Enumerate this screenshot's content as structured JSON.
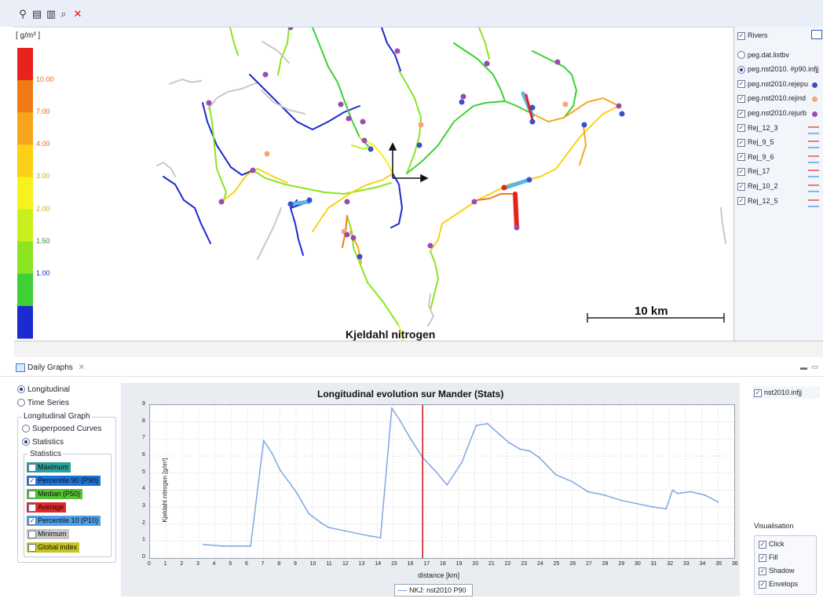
{
  "toolbar": {
    "icons": [
      "binoculars-icon",
      "save-icon",
      "export-icon",
      "zoom-icon",
      "close-icon"
    ]
  },
  "map": {
    "legend_unit": "[ g/m³ ]",
    "legend_labels": [
      "10.00",
      "7.00",
      "4.00",
      "3.00",
      "2.00",
      "1.50",
      "1.00"
    ],
    "legend_colors": [
      "#e8231e",
      "#f17a14",
      "#f7a51c",
      "#fbd017",
      "#f7f21d",
      "#c8f01c",
      "#8be41f",
      "#3ed034",
      "#1b2ad1"
    ],
    "title": "Kjeldahl nitrogen",
    "scale_label": "10 km"
  },
  "layers": {
    "items": [
      {
        "label": "Rivers",
        "type": "checkbox",
        "checked": true
      },
      {
        "label": "peg.dat.listbv",
        "type": "radio",
        "checked": false
      },
      {
        "label": "peg.nst2010. #p90.infjj",
        "type": "radio",
        "checked": true
      },
      {
        "label": "peg.nst2010.rejepu",
        "type": "checkbox",
        "checked": true,
        "color": "#3a50c8"
      },
      {
        "label": "peg.nst2010.rejind",
        "type": "checkbox",
        "checked": true,
        "color": "#f5a77a"
      },
      {
        "label": "peg.nst2010.rejurb",
        "type": "checkbox",
        "checked": true,
        "color": "#9a4bb0"
      },
      {
        "label": "Rej_12_3",
        "type": "checkbox",
        "checked": true
      },
      {
        "label": "Rej_9_5",
        "type": "checkbox",
        "checked": true
      },
      {
        "label": "Rej_9_6",
        "type": "checkbox",
        "checked": true
      },
      {
        "label": "Rej_17",
        "type": "checkbox",
        "checked": true
      },
      {
        "label": "Rej_10_2",
        "type": "checkbox",
        "checked": true
      },
      {
        "label": "Rej_12_5",
        "type": "checkbox",
        "checked": true
      }
    ]
  },
  "bottom": {
    "tab_label": "Daily Graphs",
    "mode_options": [
      {
        "label": "Longitudinal",
        "checked": true
      },
      {
        "label": "Time Series",
        "checked": false
      }
    ],
    "graph_group_label": "Longitudinal Graph",
    "graph_options": [
      {
        "label": "Superposed Curves",
        "checked": false
      },
      {
        "label": "Statistics",
        "checked": true
      }
    ],
    "stats_group_label": "Statistics",
    "stats": [
      {
        "label": "Maximum",
        "checked": false,
        "color": "#2aa198"
      },
      {
        "label": "Percentile 90 (P90)",
        "checked": true,
        "color": "#1e74d6"
      },
      {
        "label": "Median (P50)",
        "checked": false,
        "color": "#54c234"
      },
      {
        "label": "Average",
        "checked": false,
        "color": "#e3262a"
      },
      {
        "label": "Percentile 10 (P10)",
        "checked": true,
        "color": "#4f9fe6"
      },
      {
        "label": "Minimum",
        "checked": false,
        "color": "#c8c8c8"
      },
      {
        "label": "Global index",
        "checked": false,
        "color": "#c5c420"
      }
    ],
    "file_item": {
      "label": "nst2010.infjj",
      "checked": true
    },
    "visualisation_label": "Visualisation",
    "visualisation": [
      {
        "label": "Click",
        "checked": true
      },
      {
        "label": "Fill",
        "checked": true
      },
      {
        "label": "Shadow",
        "checked": true
      },
      {
        "label": "Envelops",
        "checked": true
      }
    ]
  },
  "chart_data": {
    "type": "line",
    "title": "Longitudinal evolution sur Mander  (Stats)",
    "xlabel": "distance [km]",
    "ylabel": "Kjeldahl nitrogen [g/m³]",
    "xlim": [
      0,
      36
    ],
    "ylim": [
      0,
      9
    ],
    "xticks": [
      0,
      1,
      2,
      3,
      4,
      5,
      6,
      7,
      8,
      9,
      10,
      11,
      12,
      13,
      14,
      15,
      16,
      17,
      18,
      19,
      20,
      21,
      22,
      23,
      24,
      25,
      26,
      27,
      28,
      29,
      30,
      31,
      32,
      33,
      34,
      35,
      36
    ],
    "yticks": [
      0,
      1,
      2,
      3,
      4,
      5,
      6,
      7,
      8,
      9
    ],
    "grid": true,
    "legend_placement": "bottom",
    "marker_x": 16.8,
    "series": [
      {
        "name": "NKJ: nst2010 P90",
        "color": "#7fa7e0",
        "x": [
          3.3,
          4.5,
          6.2,
          7.0,
          7.5,
          8.0,
          9.0,
          9.8,
          10.5,
          11.0,
          12.0,
          13.5,
          14.2,
          14.9,
          15.4,
          16.0,
          16.8,
          17.6,
          18.3,
          19.2,
          20.1,
          20.8,
          21.5,
          22.1,
          22.8,
          23.4,
          24.0,
          25.0,
          26.0,
          27.0,
          28.0,
          29.0,
          30.0,
          31.0,
          31.8,
          32.2,
          32.5,
          33.3,
          34.2,
          35.0
        ],
        "y": [
          0.8,
          0.7,
          0.7,
          6.9,
          6.2,
          5.2,
          3.9,
          2.6,
          2.1,
          1.8,
          1.6,
          1.3,
          1.2,
          8.8,
          8.1,
          7.1,
          5.9,
          5.1,
          4.3,
          5.6,
          7.8,
          7.9,
          7.3,
          6.8,
          6.4,
          6.3,
          5.9,
          4.9,
          4.5,
          3.9,
          3.7,
          3.4,
          3.2,
          3.0,
          2.9,
          4.0,
          3.8,
          3.9,
          3.7,
          3.3
        ]
      }
    ]
  }
}
